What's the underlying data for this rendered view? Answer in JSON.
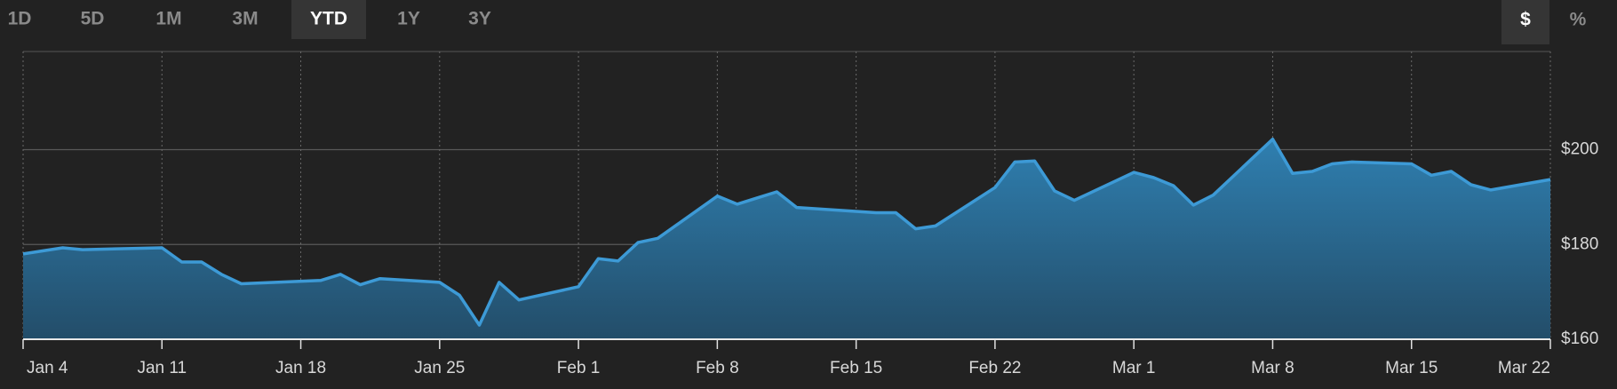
{
  "controls": {
    "ranges": [
      "1D",
      "5D",
      "1M",
      "3M",
      "YTD",
      "1Y",
      "3Y"
    ],
    "active_range": 4,
    "units": [
      "$",
      "%"
    ],
    "active_unit": 0
  },
  "chart_data": {
    "type": "area",
    "x": [
      0,
      2,
      3,
      7,
      8,
      9,
      10,
      11,
      15,
      16,
      17,
      18,
      21,
      22,
      23,
      24,
      25,
      28,
      29,
      30,
      31,
      32,
      35,
      36,
      37,
      38,
      39,
      43,
      44,
      45,
      46,
      49,
      50,
      51,
      52,
      53,
      56,
      57,
      58,
      59,
      60,
      63,
      64,
      65,
      66,
      67,
      70,
      71,
      72,
      73,
      74,
      77
    ],
    "series": [
      {
        "color": "#3d9ad6",
        "values": [
          178.0,
          179.3,
          178.9,
          179.3,
          176.3,
          176.3,
          173.7,
          171.7,
          172.4,
          173.7,
          171.5,
          172.8,
          172.0,
          169.3,
          163.0,
          172.0,
          168.3,
          171.1,
          177.0,
          176.5,
          180.4,
          181.3,
          190.2,
          188.5,
          189.8,
          191.1,
          187.8,
          186.7,
          186.7,
          183.3,
          183.9,
          192.0,
          197.4,
          197.6,
          191.3,
          189.3,
          195.2,
          194.1,
          192.4,
          188.3,
          190.4,
          202.2,
          195.0,
          195.4,
          197.0,
          197.4,
          197.0,
          194.6,
          195.4,
          192.6,
          191.5,
          193.7
        ]
      }
    ],
    "xlim": [
      0,
      77
    ],
    "xticks": [
      {
        "value": 0,
        "label": "Jan 4"
      },
      {
        "value": 7,
        "label": "Jan 11"
      },
      {
        "value": 14,
        "label": "Jan 18"
      },
      {
        "value": 21,
        "label": "Jan 25"
      },
      {
        "value": 28,
        "label": "Feb 1"
      },
      {
        "value": 35,
        "label": "Feb 8"
      },
      {
        "value": 42,
        "label": "Feb 15"
      },
      {
        "value": 49,
        "label": "Feb 22"
      },
      {
        "value": 56,
        "label": "Mar 1"
      },
      {
        "value": 63,
        "label": "Mar 8"
      },
      {
        "value": 70,
        "label": "Mar 15"
      },
      {
        "value": 77,
        "label": "Mar 22"
      }
    ],
    "ylim": [
      160,
      220.7
    ],
    "yticks": [
      {
        "value": 160,
        "label": "$160"
      },
      {
        "value": 180,
        "label": "$180"
      },
      {
        "value": 200,
        "label": "$200"
      }
    ],
    "grid": true
  }
}
